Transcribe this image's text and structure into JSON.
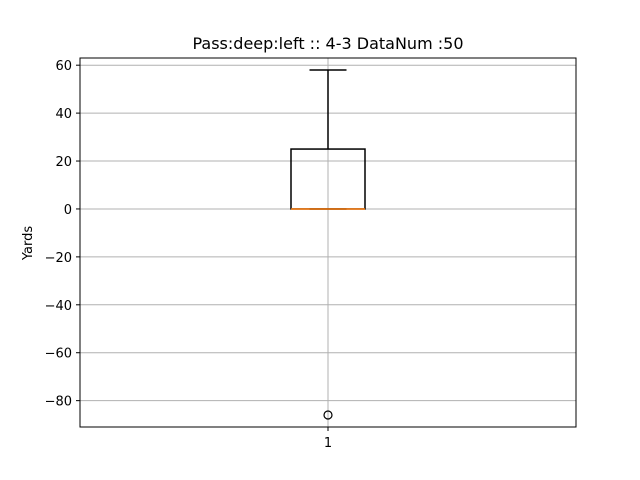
{
  "chart_data": {
    "type": "box",
    "title": "Pass:deep:left :: 4-3    DataNum :50",
    "xlabel": "",
    "ylabel": "Yards",
    "categories": [
      "1"
    ],
    "ylim": [
      -91,
      63
    ],
    "yticks": [
      60,
      40,
      20,
      0,
      -20,
      -40,
      -60,
      -80
    ],
    "ytick_labels": [
      "60",
      "40",
      "20",
      "0",
      "−20",
      "−40",
      "−60",
      "−80"
    ],
    "grid": true,
    "boxes": [
      {
        "category": "1",
        "whisker_low": 0,
        "q1": 0,
        "median": 0,
        "q3": 25,
        "whisker_high": 58,
        "outliers": [
          -86
        ]
      }
    ],
    "colors": {
      "box": "#000000",
      "median": "#ff7f0e",
      "grid": "#b0b0b0"
    }
  }
}
